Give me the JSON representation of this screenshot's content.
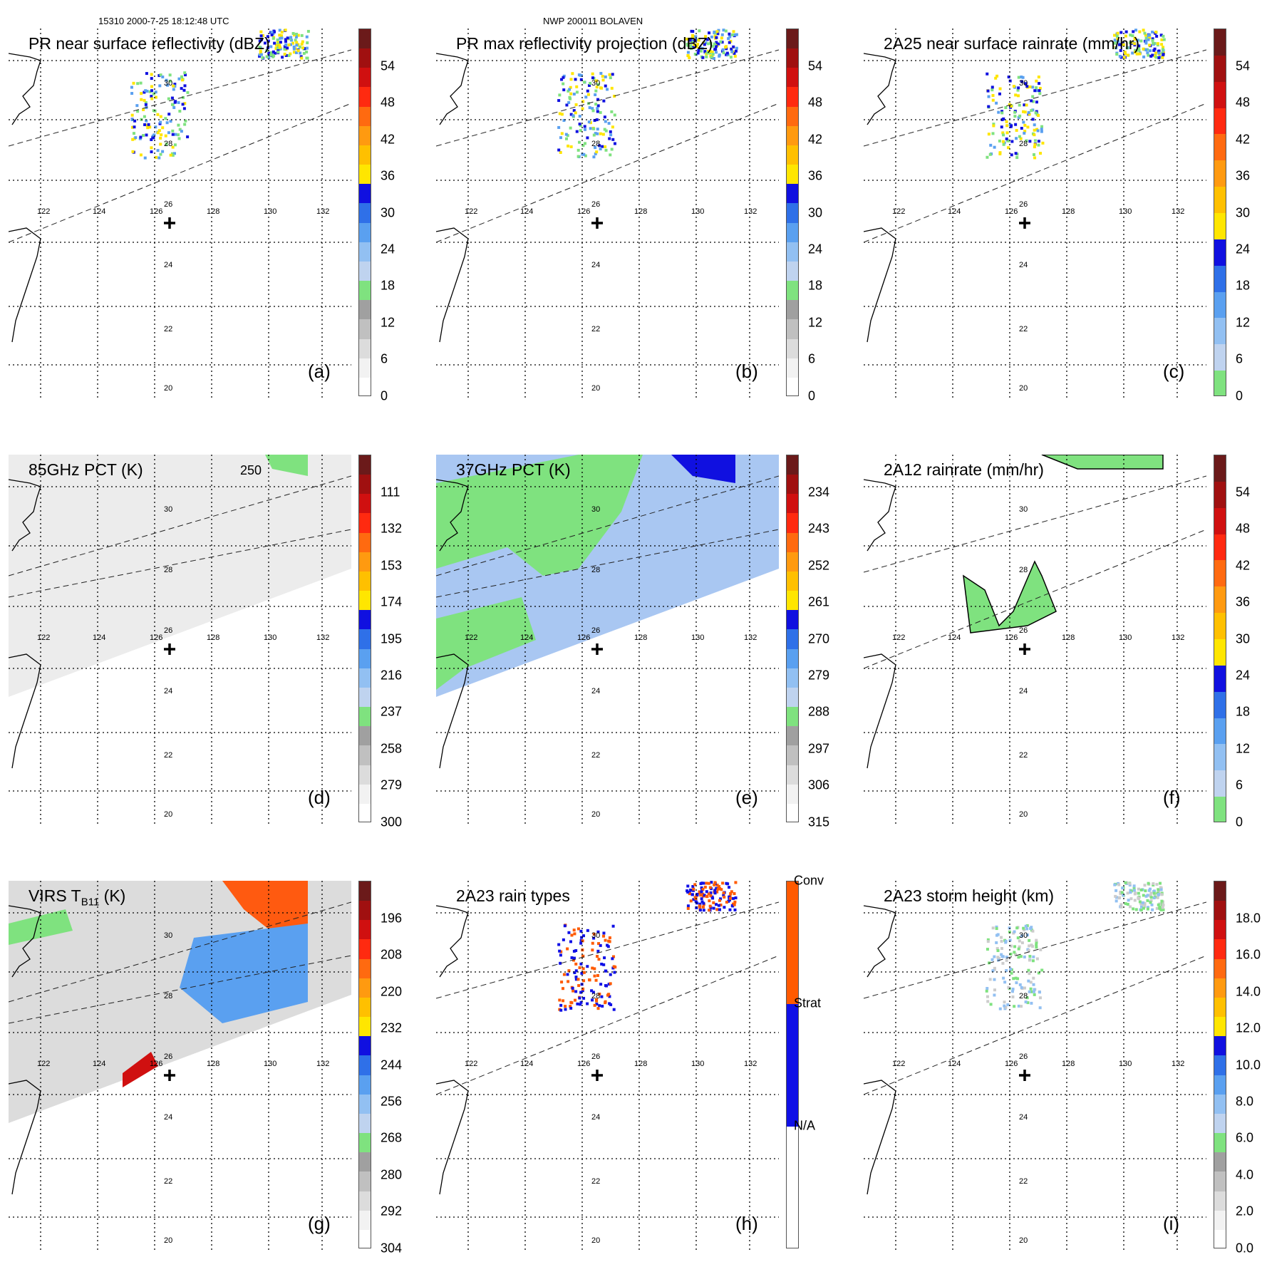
{
  "header": {
    "left": "15310 2000-7-25 18:12:48 UTC",
    "center": "NWP 200011 BOLAVEN"
  },
  "lat_labels": [
    "30",
    "28",
    "26",
    "24",
    "22",
    "20"
  ],
  "lon_labels": [
    "122",
    "124",
    "126",
    "128",
    "130",
    "132"
  ],
  "contour_label": "250",
  "colors": {
    "rain_scale": [
      "#7fe27f",
      "#bfd3ef",
      "#92c0f2",
      "#5aa0f0",
      "#2f70e8",
      "#1010e0",
      "#ffe600",
      "#ffc000",
      "#ff9a10",
      "#ff6a10",
      "#ff2a10",
      "#d01010",
      "#a01010",
      "#6b1a1a"
    ],
    "gray_scale": [
      "#ffffff",
      "#f0f0f0",
      "#dcdcdc",
      "#c8c8c8",
      "#b4b4b4",
      "#a0a0a0"
    ],
    "conv": "#ff5a00",
    "strat": "#1010e6",
    "na": "#ffffff"
  },
  "panels": [
    {
      "id": "a",
      "title": "PR near surface reflectivity (dBZ)",
      "label": "(a)",
      "ticks": [
        "54",
        "48",
        "42",
        "36",
        "30",
        "24",
        "18",
        "12",
        "6",
        "0"
      ]
    },
    {
      "id": "b",
      "title": "PR max reflectivity projection (dBZ)",
      "label": "(b)",
      "ticks": [
        "54",
        "48",
        "42",
        "36",
        "30",
        "24",
        "18",
        "12",
        "6",
        "0"
      ]
    },
    {
      "id": "c",
      "title": "2A25 near surface rainrate (mm/hr)",
      "label": "(c)",
      "ticks": [
        "54",
        "48",
        "42",
        "36",
        "30",
        "24",
        "18",
        "12",
        "6",
        "0"
      ]
    },
    {
      "id": "d",
      "title": "85GHz PCT (K)",
      "label": "(d)",
      "ticks": [
        "111",
        "132",
        "153",
        "174",
        "195",
        "216",
        "237",
        "258",
        "279",
        "300"
      ]
    },
    {
      "id": "e",
      "title": "37GHz PCT (K)",
      "label": "(e)",
      "ticks": [
        "234",
        "243",
        "252",
        "261",
        "270",
        "279",
        "288",
        "297",
        "306",
        "315"
      ]
    },
    {
      "id": "f",
      "title": "2A12 rainrate (mm/hr)",
      "label": "(f)",
      "ticks": [
        "54",
        "48",
        "42",
        "36",
        "30",
        "24",
        "18",
        "12",
        "6",
        "0"
      ]
    },
    {
      "id": "g",
      "title": "VIRS T",
      "title_sub": "B11",
      "title_suffix": " (K)",
      "label": "(g)",
      "ticks": [
        "196",
        "208",
        "220",
        "232",
        "244",
        "256",
        "268",
        "280",
        "292",
        "304"
      ]
    },
    {
      "id": "h",
      "title": "2A23 rain types",
      "label": "(h)",
      "ticks": [
        "Conv",
        "Strat",
        "N/A"
      ]
    },
    {
      "id": "i",
      "title": "2A23 storm height (km)",
      "label": "(i)",
      "ticks": [
        "18.0",
        "16.0",
        "14.0",
        "12.0",
        "10.0",
        "8.0",
        "6.0",
        "4.0",
        "2.0",
        "0.0"
      ]
    }
  ]
}
